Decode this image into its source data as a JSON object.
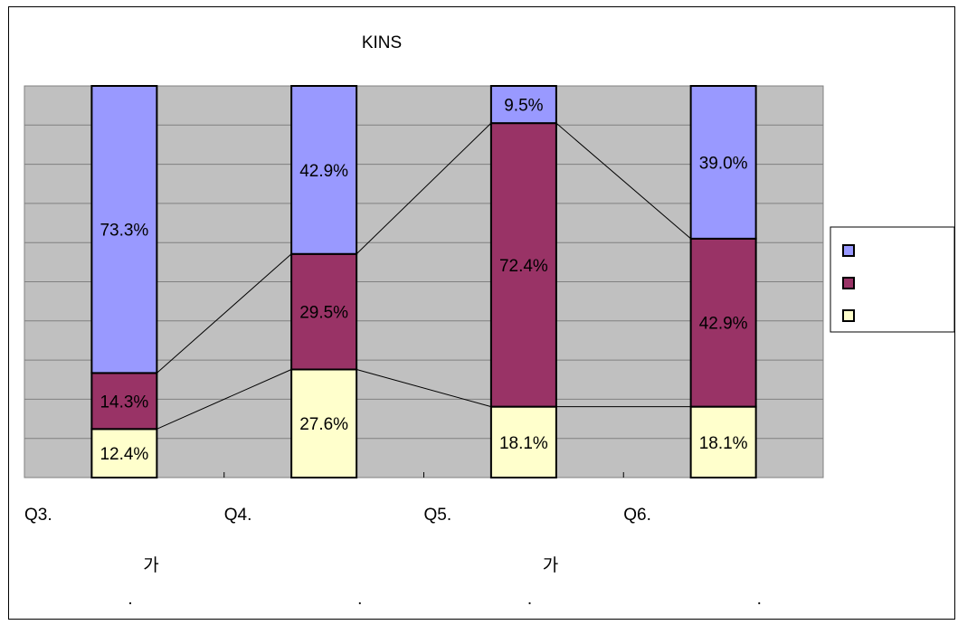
{
  "chart_data": {
    "type": "bar",
    "stacked": true,
    "percent": true,
    "title": "KINS",
    "categories": [
      "Q3.",
      "Q4.",
      "Q5.",
      "Q6."
    ],
    "category_sublabels": [
      [
        "가",
        "."
      ],
      [
        "."
      ],
      [
        "가",
        "."
      ],
      [
        "."
      ]
    ],
    "series": [
      {
        "values": [
          12.4,
          27.6,
          18.1,
          18.1
        ],
        "color": "#FFFFCC",
        "labels": [
          "12.4%",
          "27.6%",
          "18.1%",
          "18.1%"
        ]
      },
      {
        "values": [
          14.3,
          29.5,
          72.4,
          42.9
        ],
        "color": "#993366",
        "labels": [
          "14.3%",
          "29.5%",
          "72.4%",
          "42.9%"
        ]
      },
      {
        "values": [
          73.3,
          42.9,
          9.5,
          39.0
        ],
        "color": "#9999FF",
        "labels": [
          "73.3%",
          "42.9%",
          "9.5%",
          "39.0%"
        ]
      }
    ],
    "ylim": [
      0,
      100
    ],
    "grid": true,
    "plot_background": "#C0C0C0",
    "series_lines": true,
    "legend": {
      "position": "right",
      "entries": [
        "",
        "",
        ""
      ],
      "order_top_to_bottom": [
        2,
        1,
        0
      ]
    }
  }
}
